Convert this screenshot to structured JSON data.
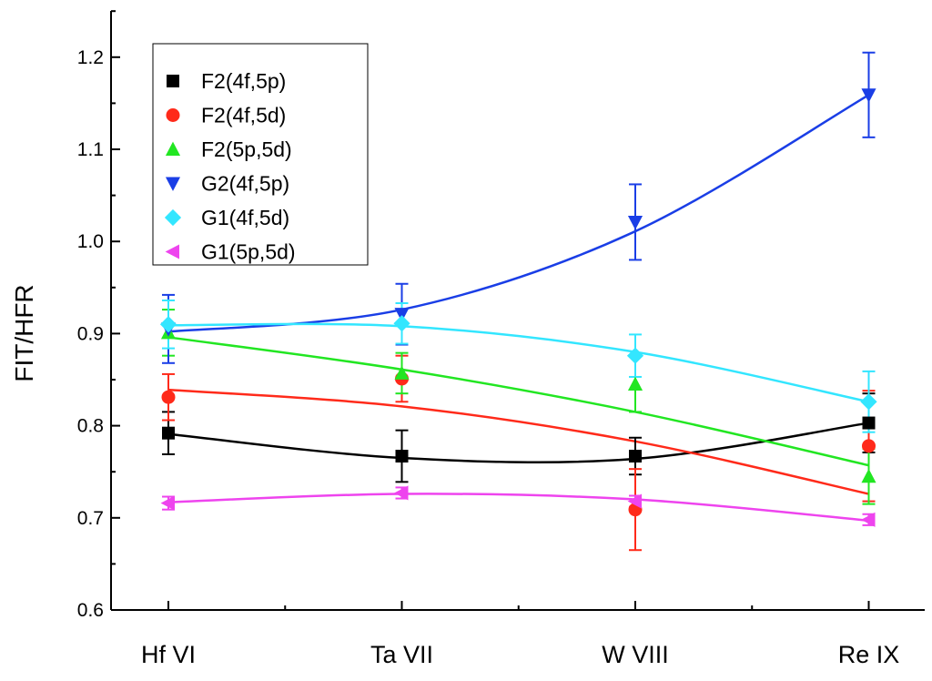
{
  "chart_data": {
    "type": "line",
    "title": "",
    "xlabel": "",
    "ylabel": "FIT/HFR",
    "categories": [
      "Hf VI",
      "Ta VII",
      "W VIII",
      "Re IX"
    ],
    "ylim": [
      0.6,
      1.25
    ],
    "yticks": [
      "0.6",
      "0.7",
      "0.8",
      "0.9",
      "1.0",
      "1.1",
      "1.2"
    ],
    "legend_position": "top-left",
    "grid": false,
    "series": [
      {
        "name": "F2(4f,5p)",
        "color": "#000000",
        "marker": "square",
        "values": [
          0.792,
          0.767,
          0.767,
          0.803
        ],
        "errors": [
          0.023,
          0.028,
          0.02,
          0.032
        ],
        "fit": [
          0.791,
          0.765,
          0.764,
          0.803
        ]
      },
      {
        "name": "F2(4f,5d)",
        "color": "#ff2a1a",
        "marker": "circle",
        "values": [
          0.831,
          0.851,
          0.709,
          0.778
        ],
        "errors": [
          0.025,
          0.025,
          0.044,
          0.06
        ],
        "fit": [
          0.839,
          0.821,
          0.783,
          0.726
        ]
      },
      {
        "name": "F2(5p,5d)",
        "color": "#22e622",
        "marker": "triangle-up",
        "values": [
          0.901,
          0.857,
          0.845,
          0.745
        ],
        "errors": [
          0.025,
          0.022,
          0.03,
          0.03
        ],
        "fit": [
          0.896,
          0.861,
          0.815,
          0.757
        ]
      },
      {
        "name": "G2(4f,5p)",
        "color": "#1a3ee6",
        "marker": "triangle-down",
        "values": [
          0.905,
          0.921,
          1.021,
          1.159
        ],
        "errors": [
          0.037,
          0.033,
          0.041,
          0.046
        ],
        "fit": [
          0.902,
          0.926,
          1.011,
          1.159
        ]
      },
      {
        "name": "G1(4f,5d)",
        "color": "#33e6ff",
        "marker": "diamond",
        "values": [
          0.91,
          0.911,
          0.876,
          0.826
        ],
        "errors": [
          0.026,
          0.022,
          0.023,
          0.033
        ],
        "fit": [
          0.909,
          0.908,
          0.88,
          0.826
        ]
      },
      {
        "name": "G1(5p,5d)",
        "color": "#ee44ee",
        "marker": "triangle-left",
        "values": [
          0.716,
          0.727,
          0.718,
          0.698
        ],
        "errors": [
          0.007,
          0.006,
          0.006,
          0.006
        ],
        "fit": [
          0.717,
          0.726,
          0.72,
          0.697
        ]
      }
    ]
  }
}
